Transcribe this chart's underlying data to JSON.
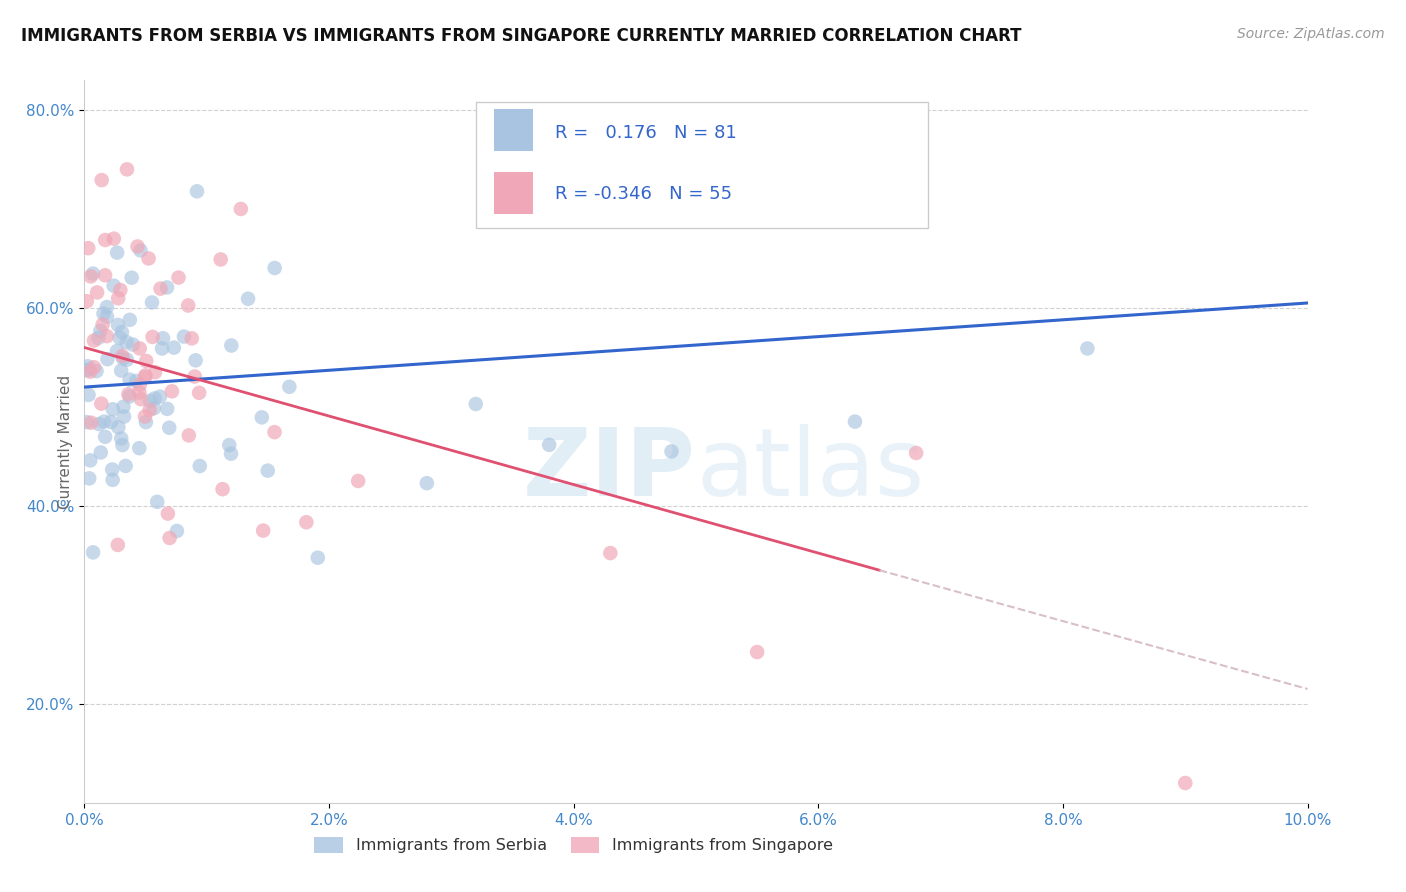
{
  "title": "IMMIGRANTS FROM SERBIA VS IMMIGRANTS FROM SINGAPORE CURRENTLY MARRIED CORRELATION CHART",
  "source": "Source: ZipAtlas.com",
  "ylabel": "Currently Married",
  "serbia_color": "#a8c4e0",
  "singapore_color": "#f0a8b8",
  "serbia_line_color": "#3366cc",
  "singapore_line_color": "#e05070",
  "singapore_dash_color": "#d8c0c8",
  "serbia_R": 0.176,
  "serbia_N": 81,
  "singapore_R": -0.346,
  "singapore_N": 55,
  "serbia_line_x0": 0.0,
  "serbia_line_x1": 10.0,
  "serbia_line_y0": 52.0,
  "serbia_line_y1": 60.5,
  "singapore_solid_x0": 0.0,
  "singapore_solid_x1": 6.5,
  "singapore_solid_y0": 56.0,
  "singapore_solid_y1": 33.5,
  "singapore_dash_x0": 6.5,
  "singapore_dash_x1": 10.0,
  "singapore_dash_y0": 33.5,
  "singapore_dash_y1": 21.5,
  "xlim_min": 0.0,
  "xlim_max": 10.0,
  "ylim_min": 10.0,
  "ylim_max": 83.0,
  "yticks": [
    20.0,
    40.0,
    60.0,
    80.0
  ],
  "xticks": [
    0.0,
    2.0,
    4.0,
    6.0,
    8.0,
    10.0
  ],
  "watermark_text": "ZIPatlas",
  "legend_label_serbia": "Immigrants from Serbia",
  "legend_label_singapore": "Immigrants from Singapore",
  "tick_color": "#4488cc",
  "tick_fontsize": 11,
  "title_fontsize": 12,
  "source_fontsize": 10
}
